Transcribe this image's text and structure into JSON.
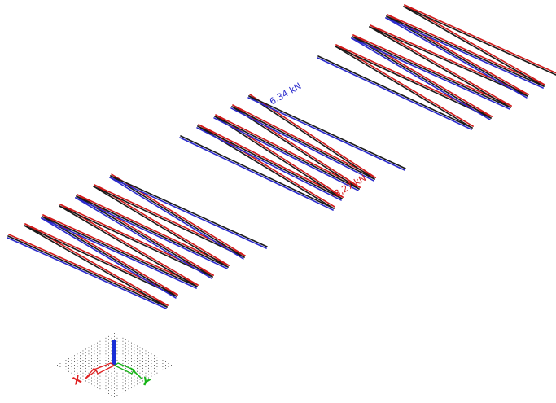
{
  "colors": {
    "background": "#ffffff",
    "frame": "#1a1a1a",
    "tension": "#2a2acc",
    "compression": "#d11a1a",
    "axis_x": "#e02020",
    "axis_y": "#18b418",
    "axis_z": "#1a2fd6",
    "grid_dot": "#444444"
  },
  "labels": {
    "max_force": "6,34 kN",
    "min_force": "-3,27 kN"
  },
  "axes": {
    "x_label": "X",
    "y_label": "Y"
  }
}
